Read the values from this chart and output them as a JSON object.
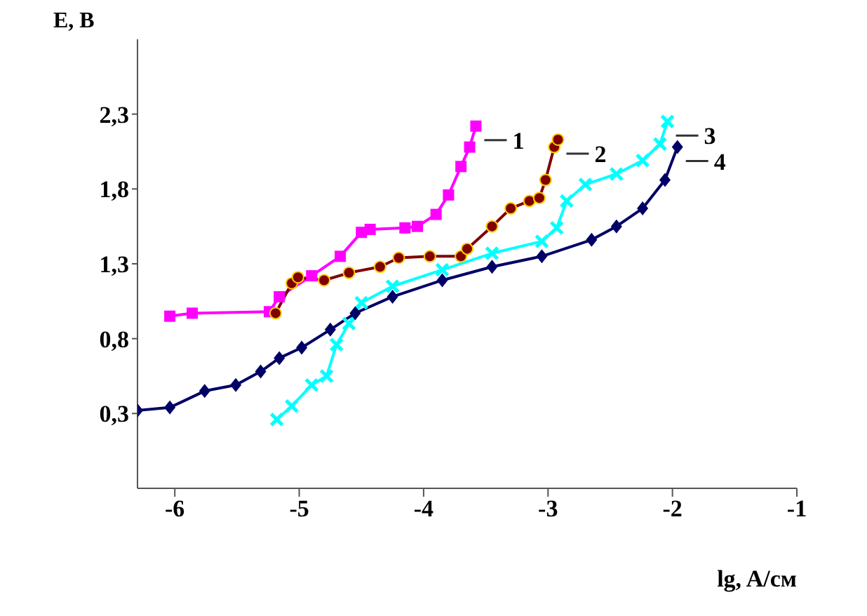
{
  "chart_data": {
    "type": "line",
    "xlabel": "lg, A/см",
    "ylabel": "E, B",
    "xlim": [
      -6.3,
      -1
    ],
    "ylim": [
      -0.2,
      2.8
    ],
    "xticks": [
      -6,
      -5,
      -4,
      -3,
      -2,
      -1
    ],
    "yticks": [
      {
        "value": 0.3,
        "label": "0,3"
      },
      {
        "value": 0.8,
        "label": "0,8"
      },
      {
        "value": 1.3,
        "label": "1,3"
      },
      {
        "value": 1.8,
        "label": "1,8"
      },
      {
        "value": 2.3,
        "label": "2,3"
      }
    ],
    "grid": false,
    "legend": false,
    "series": [
      {
        "name": "1",
        "color": "#ff00ff",
        "marker": "square",
        "x": [
          -6.04,
          -5.86,
          -5.24,
          -5.16,
          -4.9,
          -4.67,
          -4.5,
          -4.43,
          -4.15,
          -4.05,
          -3.9,
          -3.8,
          -3.7,
          -3.63,
          -3.58
        ],
        "values": [
          0.95,
          0.97,
          0.98,
          1.08,
          1.22,
          1.35,
          1.51,
          1.53,
          1.54,
          1.55,
          1.63,
          1.76,
          1.95,
          2.08,
          2.22
        ]
      },
      {
        "name": "2",
        "color": "#800000",
        "marker": "circle",
        "x": [
          -5.19,
          -5.06,
          -5.01,
          -4.8,
          -4.6,
          -4.35,
          -4.2,
          -3.95,
          -3.7,
          -3.65,
          -3.45,
          -3.3,
          -3.15,
          -3.07,
          -3.02,
          -2.95,
          -2.92
        ],
        "values": [
          0.97,
          1.17,
          1.21,
          1.19,
          1.24,
          1.28,
          1.34,
          1.35,
          1.35,
          1.4,
          1.55,
          1.67,
          1.72,
          1.74,
          1.86,
          2.08,
          2.13
        ]
      },
      {
        "name": "3",
        "color": "#00ffff",
        "marker": "cross",
        "x": [
          -5.18,
          -5.06,
          -4.9,
          -4.78,
          -4.7,
          -4.6,
          -4.5,
          -4.25,
          -3.85,
          -3.45,
          -3.05,
          -2.93,
          -2.85,
          -2.7,
          -2.45,
          -2.24,
          -2.1,
          -2.04
        ],
        "values": [
          0.26,
          0.35,
          0.49,
          0.55,
          0.76,
          0.9,
          1.04,
          1.15,
          1.26,
          1.37,
          1.45,
          1.54,
          1.72,
          1.83,
          1.9,
          1.99,
          2.1,
          2.25
        ]
      },
      {
        "name": "4",
        "color": "#000066",
        "marker": "diamond",
        "x": [
          -6.3,
          -6.04,
          -5.76,
          -5.51,
          -5.31,
          -5.16,
          -4.98,
          -4.75,
          -4.55,
          -4.25,
          -3.85,
          -3.45,
          -3.05,
          -2.65,
          -2.45,
          -2.24,
          -2.06,
          -1.96
        ],
        "values": [
          0.32,
          0.34,
          0.45,
          0.49,
          0.58,
          0.67,
          0.74,
          0.86,
          0.97,
          1.08,
          1.19,
          1.28,
          1.35,
          1.46,
          1.55,
          1.67,
          1.86,
          2.08
        ]
      }
    ]
  }
}
